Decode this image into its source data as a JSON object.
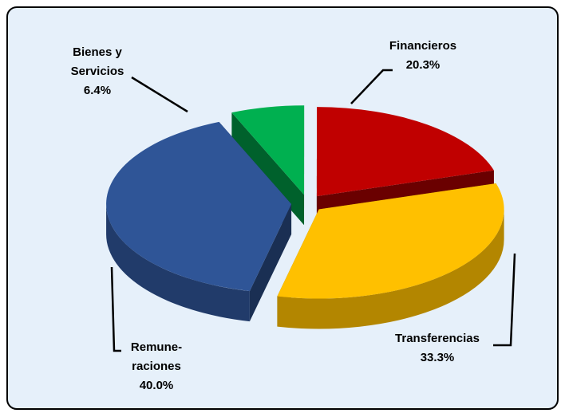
{
  "chart_data": {
    "type": "pie",
    "categories": [
      "Bienes y\nServicios",
      "Financieros",
      "Transferencias",
      "Remune-\nraciones"
    ],
    "values": [
      6.4,
      20.3,
      33.3,
      40.0
    ],
    "value_labels": [
      "6.4%",
      "20.3%",
      "33.3%",
      "40.0%"
    ],
    "colors": [
      "#00b050",
      "#c00000",
      "#ffc000",
      "#2f5597"
    ]
  }
}
